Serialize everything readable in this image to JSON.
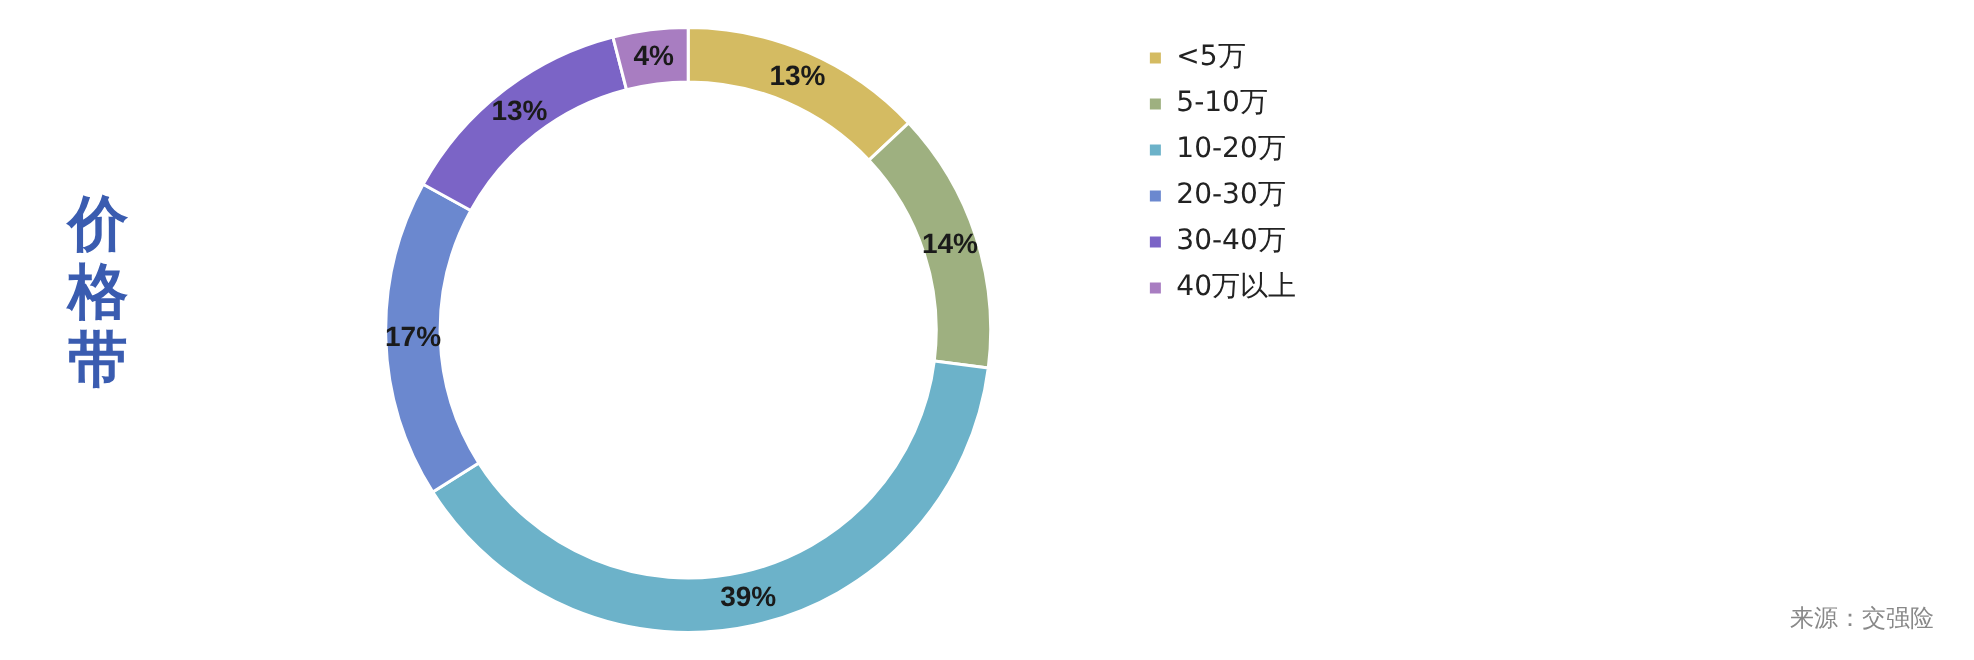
{
  "chart_data": {
    "type": "donut",
    "title": "价格带",
    "categories": [
      "<5万",
      "5-10万",
      "10-20万",
      "20-30万",
      "30-40万",
      "40万以上"
    ],
    "values": [
      13,
      14,
      39,
      17,
      13,
      4
    ],
    "value_labels": [
      "13%",
      "14%",
      "39%",
      "17%",
      "13%",
      "4%"
    ],
    "colors": [
      "#d4bb62",
      "#9eb080",
      "#6cb2c9",
      "#6b88cf",
      "#7b64c6",
      "#a87dc1"
    ],
    "legend": "top right",
    "annotations": [
      "来源：交强险"
    ]
  }
}
